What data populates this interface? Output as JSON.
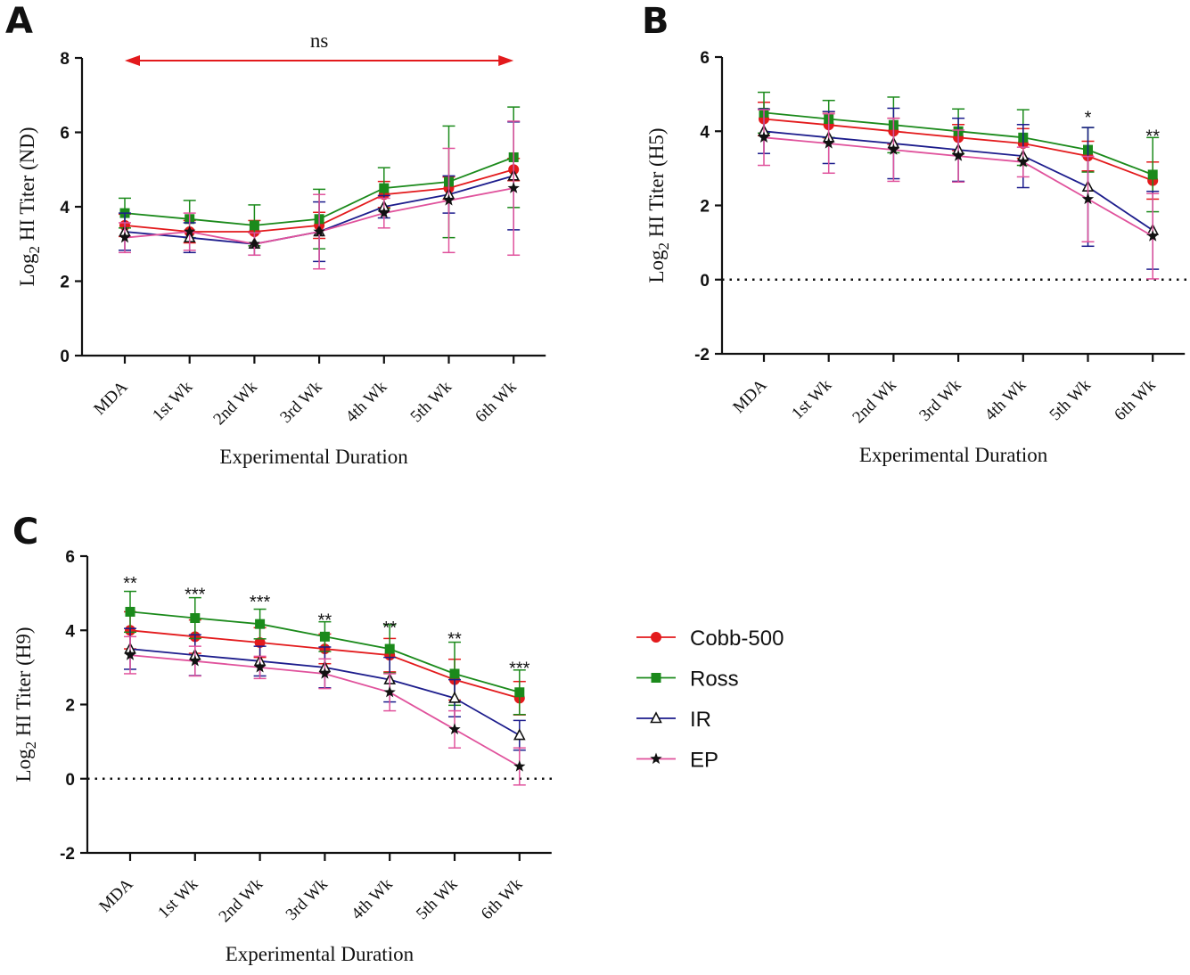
{
  "legend": {
    "entries": [
      {
        "label": "Cobb-500",
        "color": "#e31a1c",
        "marker": "circle"
      },
      {
        "label": "Ross",
        "color": "#1b8a1b",
        "marker": "square"
      },
      {
        "label": "IR",
        "color": "#1c1c8c",
        "marker": "triangle"
      },
      {
        "label": "EP",
        "color": "#e0529c",
        "marker": "star"
      }
    ]
  },
  "chart_data": [
    {
      "panel": "A",
      "type": "line",
      "xlabel": "Experimental Duration",
      "ylabel_prefix": "Log",
      "ylabel_sub": "2",
      "ylabel_suffix": " HI Titer (ND)",
      "categories": [
        "MDA",
        "1st  Wk",
        "2nd Wk",
        "3rd Wk",
        "4th Wk",
        "5th Wk",
        "6th Wk"
      ],
      "ylim": [
        0,
        8
      ],
      "yticks": [
        0,
        2,
        4,
        6,
        8
      ],
      "zero_line": false,
      "annotations": [
        {
          "text": "ns",
          "type": "range_arrow",
          "from_index": 0,
          "to_index": 6
        }
      ],
      "series": [
        {
          "name": "Cobb-500",
          "values": [
            3.5,
            3.33,
            3.33,
            3.5,
            4.33,
            4.5,
            5.0
          ],
          "errors": [
            0.3,
            0.3,
            0.3,
            0.35,
            0.35,
            0.3,
            0.3
          ]
        },
        {
          "name": "Ross",
          "values": [
            3.83,
            3.67,
            3.5,
            3.67,
            4.5,
            4.67,
            5.33
          ],
          "errors": [
            0.4,
            0.5,
            0.55,
            0.8,
            0.55,
            1.5,
            1.35
          ]
        },
        {
          "name": "IR",
          "values": [
            3.33,
            3.17,
            3.0,
            3.33,
            4.0,
            4.33,
            4.83
          ],
          "errors": [
            0.5,
            0.4,
            0.3,
            0.8,
            0.3,
            0.5,
            1.45
          ]
        },
        {
          "name": "EP",
          "values": [
            3.17,
            3.33,
            3.0,
            3.33,
            3.83,
            4.17,
            4.5
          ],
          "errors": [
            0.4,
            0.5,
            0.3,
            1.0,
            0.4,
            1.4,
            1.8
          ]
        }
      ]
    },
    {
      "panel": "B",
      "type": "line",
      "xlabel": "Experimental Duration",
      "ylabel_prefix": "Log",
      "ylabel_sub": "2",
      "ylabel_suffix": " HI Titer (H5)",
      "categories": [
        "MDA",
        "1st  Wk",
        "2nd Wk",
        "3rd Wk",
        "4th Wk",
        "5th Wk",
        "6th Wk"
      ],
      "ylim": [
        -2,
        6
      ],
      "yticks": [
        -2,
        0,
        2,
        4,
        6
      ],
      "zero_line": true,
      "annotations": [
        {
          "text": "*",
          "index": 5,
          "y": 4.5
        },
        {
          "text": "**",
          "index": 6,
          "y": 4.0
        }
      ],
      "series": [
        {
          "name": "Cobb-500",
          "values": [
            4.33,
            4.17,
            4.0,
            3.83,
            3.67,
            3.33,
            2.67
          ],
          "errors": [
            0.45,
            0.35,
            0.35,
            0.35,
            0.4,
            0.4,
            0.5
          ]
        },
        {
          "name": "Ross",
          "values": [
            4.5,
            4.33,
            4.17,
            4.0,
            3.83,
            3.5,
            2.83
          ],
          "errors": [
            0.55,
            0.5,
            0.75,
            0.6,
            0.75,
            0.6,
            1.0
          ]
        },
        {
          "name": "IR",
          "values": [
            4.0,
            3.83,
            3.67,
            3.5,
            3.33,
            2.5,
            1.33
          ],
          "errors": [
            0.6,
            0.7,
            0.95,
            0.85,
            0.85,
            1.6,
            1.05
          ]
        },
        {
          "name": "EP",
          "values": [
            3.83,
            3.67,
            3.5,
            3.33,
            3.17,
            2.17,
            1.17
          ],
          "errors": [
            0.75,
            0.8,
            0.85,
            0.7,
            0.4,
            1.15,
            1.15
          ]
        }
      ]
    },
    {
      "panel": "C",
      "type": "line",
      "xlabel": "Experimental Duration",
      "ylabel_prefix": "Log",
      "ylabel_sub": "2",
      "ylabel_suffix": " HI Titer (H9)",
      "categories": [
        "MDA",
        "1st  Wk",
        "2nd Wk",
        "3rd Wk",
        "4th Wk",
        "5th Wk",
        "6th Wk"
      ],
      "ylim": [
        -2,
        6
      ],
      "yticks": [
        -2,
        0,
        2,
        4,
        6
      ],
      "zero_line": true,
      "annotations": [
        {
          "text": "**",
          "index": 0,
          "y": 5.4
        },
        {
          "text": "***",
          "index": 1,
          "y": 5.1
        },
        {
          "text": "***",
          "index": 2,
          "y": 4.9
        },
        {
          "text": "**",
          "index": 3,
          "y": 4.4
        },
        {
          "text": "**",
          "index": 4,
          "y": 4.2
        },
        {
          "text": "**",
          "index": 5,
          "y": 3.9
        },
        {
          "text": "***",
          "index": 6,
          "y": 3.1
        }
      ],
      "series": [
        {
          "name": "Cobb-500",
          "values": [
            4.0,
            3.83,
            3.67,
            3.5,
            3.33,
            2.67,
            2.17
          ],
          "errors": [
            0.5,
            0.45,
            0.4,
            0.4,
            0.45,
            0.55,
            0.45
          ]
        },
        {
          "name": "Ross",
          "values": [
            4.5,
            4.33,
            4.17,
            3.83,
            3.5,
            2.83,
            2.33
          ],
          "errors": [
            0.55,
            0.55,
            0.4,
            0.4,
            0.65,
            0.85,
            0.6
          ]
        },
        {
          "name": "IR",
          "values": [
            3.5,
            3.33,
            3.17,
            3.0,
            2.67,
            2.17,
            1.17
          ],
          "errors": [
            0.55,
            0.55,
            0.4,
            0.55,
            0.6,
            0.5,
            0.4
          ]
        },
        {
          "name": "EP",
          "values": [
            3.33,
            3.17,
            3.0,
            2.83,
            2.33,
            1.33,
            0.33
          ],
          "errors": [
            0.5,
            0.4,
            0.3,
            0.4,
            0.5,
            0.5,
            0.5
          ]
        }
      ]
    }
  ]
}
